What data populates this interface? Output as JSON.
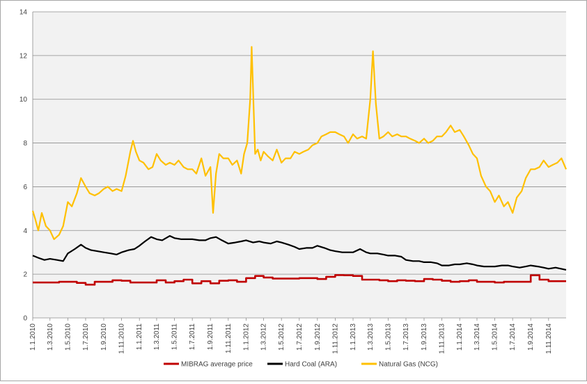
{
  "chart_data": {
    "type": "line",
    "title": "",
    "xlabel": "",
    "ylabel": "",
    "ylim": [
      0,
      14
    ],
    "yticks": [
      0,
      2,
      4,
      6,
      8,
      10,
      12,
      14
    ],
    "grid": "horizontal",
    "legend": "bottom",
    "x_tick_labels": [
      "1.1.2010",
      "1.3.2010",
      "1.5.2010",
      "1.7.2010",
      "1.9.2010",
      "1.11.2010",
      "1.1.2011",
      "1.3.2011",
      "1.5.2011",
      "1.7.2011",
      "1.9.2011",
      "1.11.2011",
      "1.1.2012",
      "1.3.2012",
      "1.5.2012",
      "1.7.2012",
      "1.9.2012",
      "1.11.2012",
      "1.1.2013",
      "1.3.2013",
      "1.5.2013",
      "1.7.2013",
      "1.9.2013",
      "1.11.2013",
      "1.1.2014",
      "1.3.2014",
      "1.5.2014",
      "1.7.2014",
      "1.9.2014",
      "1.11.2014"
    ],
    "series": [
      {
        "name": "MIBRAG average price",
        "color": "#c00000",
        "style": "step",
        "x": [
          "2010-01",
          "2010-02",
          "2010-03",
          "2010-04",
          "2010-05",
          "2010-06",
          "2010-07",
          "2010-08",
          "2010-09",
          "2010-10",
          "2010-11",
          "2010-12",
          "2011-01",
          "2011-02",
          "2011-03",
          "2011-04",
          "2011-05",
          "2011-06",
          "2011-07",
          "2011-08",
          "2011-09",
          "2011-10",
          "2011-11",
          "2011-12",
          "2012-01",
          "2012-02",
          "2012-03",
          "2012-04",
          "2012-05",
          "2012-06",
          "2012-07",
          "2012-08",
          "2012-09",
          "2012-10",
          "2012-11",
          "2012-12",
          "2013-01",
          "2013-02",
          "2013-03",
          "2013-04",
          "2013-05",
          "2013-06",
          "2013-07",
          "2013-08",
          "2013-09",
          "2013-10",
          "2013-11",
          "2013-12",
          "2014-01",
          "2014-02",
          "2014-03",
          "2014-04",
          "2014-05",
          "2014-06",
          "2014-07",
          "2014-08",
          "2014-09",
          "2014-10",
          "2014-11",
          "2014-12"
        ],
        "values": [
          1.62,
          1.62,
          1.62,
          1.65,
          1.65,
          1.6,
          1.52,
          1.65,
          1.65,
          1.72,
          1.7,
          1.62,
          1.62,
          1.62,
          1.72,
          1.62,
          1.68,
          1.75,
          1.58,
          1.68,
          1.58,
          1.7,
          1.72,
          1.65,
          1.82,
          1.92,
          1.85,
          1.8,
          1.8,
          1.8,
          1.82,
          1.82,
          1.78,
          1.88,
          1.96,
          1.95,
          1.92,
          1.75,
          1.75,
          1.72,
          1.68,
          1.72,
          1.7,
          1.68,
          1.78,
          1.75,
          1.7,
          1.65,
          1.68,
          1.72,
          1.65,
          1.65,
          1.62,
          1.65,
          1.65,
          1.65,
          1.95,
          1.75,
          1.68,
          1.68
        ]
      },
      {
        "name": "Hard Coal (ARA)",
        "color": "#000000",
        "style": "line",
        "x": [
          "2010-01-01",
          "2010-01-20",
          "2010-02-10",
          "2010-03-01",
          "2010-03-25",
          "2010-04-15",
          "2010-05-01",
          "2010-05-25",
          "2010-06-15",
          "2010-07-01",
          "2010-07-20",
          "2010-08-10",
          "2010-09-01",
          "2010-09-25",
          "2010-10-15",
          "2010-11-01",
          "2010-11-25",
          "2010-12-15",
          "2011-01-01",
          "2011-01-20",
          "2011-02-10",
          "2011-03-01",
          "2011-03-20",
          "2011-04-15",
          "2011-05-01",
          "2011-05-25",
          "2011-06-15",
          "2011-07-01",
          "2011-07-25",
          "2011-08-15",
          "2011-09-01",
          "2011-09-20",
          "2011-10-10",
          "2011-11-01",
          "2011-11-25",
          "2011-12-15",
          "2012-01-01",
          "2012-01-25",
          "2012-02-15",
          "2012-03-01",
          "2012-03-25",
          "2012-04-15",
          "2012-05-01",
          "2012-05-25",
          "2012-06-15",
          "2012-07-01",
          "2012-07-25",
          "2012-08-15",
          "2012-09-01",
          "2012-09-25",
          "2012-10-15",
          "2012-11-01",
          "2012-11-25",
          "2012-12-15",
          "2013-01-01",
          "2013-01-25",
          "2013-02-15",
          "2013-03-01",
          "2013-03-25",
          "2013-04-15",
          "2013-05-01",
          "2013-05-25",
          "2013-06-15",
          "2013-07-01",
          "2013-07-25",
          "2013-08-15",
          "2013-09-01",
          "2013-09-25",
          "2013-10-15",
          "2013-11-01",
          "2013-11-25",
          "2013-12-15",
          "2014-01-01",
          "2014-01-25",
          "2014-02-15",
          "2014-03-01",
          "2014-03-25",
          "2014-04-15",
          "2014-05-01",
          "2014-05-25",
          "2014-06-15",
          "2014-07-01",
          "2014-07-25",
          "2014-08-15",
          "2014-09-01",
          "2014-09-25",
          "2014-10-15",
          "2014-11-01",
          "2014-11-25",
          "2014-12-31"
        ],
        "values": [
          2.85,
          2.75,
          2.65,
          2.7,
          2.65,
          2.6,
          2.95,
          3.15,
          3.35,
          3.2,
          3.1,
          3.05,
          3.0,
          2.95,
          2.9,
          3.0,
          3.1,
          3.15,
          3.3,
          3.5,
          3.7,
          3.6,
          3.55,
          3.75,
          3.65,
          3.6,
          3.6,
          3.6,
          3.55,
          3.55,
          3.65,
          3.7,
          3.55,
          3.4,
          3.45,
          3.5,
          3.55,
          3.45,
          3.5,
          3.45,
          3.4,
          3.5,
          3.45,
          3.35,
          3.25,
          3.15,
          3.2,
          3.2,
          3.3,
          3.2,
          3.1,
          3.05,
          3.0,
          3.0,
          3.0,
          3.15,
          3.0,
          2.95,
          2.95,
          2.9,
          2.85,
          2.85,
          2.8,
          2.65,
          2.6,
          2.6,
          2.55,
          2.55,
          2.5,
          2.4,
          2.4,
          2.45,
          2.45,
          2.5,
          2.45,
          2.4,
          2.35,
          2.35,
          2.35,
          2.4,
          2.4,
          2.35,
          2.3,
          2.35,
          2.4,
          2.35,
          2.3,
          2.25,
          2.3,
          2.2
        ]
      },
      {
        "name": "Natural Gas (NCG)",
        "color": "#ffc000",
        "style": "line",
        "x": [
          "2010-01-01",
          "2010-01-10",
          "2010-01-20",
          "2010-02-01",
          "2010-02-15",
          "2010-03-01",
          "2010-03-15",
          "2010-04-01",
          "2010-04-15",
          "2010-05-01",
          "2010-05-15",
          "2010-06-01",
          "2010-06-15",
          "2010-07-01",
          "2010-07-15",
          "2010-08-01",
          "2010-08-15",
          "2010-09-01",
          "2010-09-15",
          "2010-10-01",
          "2010-10-15",
          "2010-11-01",
          "2010-11-15",
          "2010-12-01",
          "2010-12-10",
          "2010-12-20",
          "2011-01-01",
          "2011-01-15",
          "2011-02-01",
          "2011-02-15",
          "2011-03-01",
          "2011-03-15",
          "2011-04-01",
          "2011-04-15",
          "2011-05-01",
          "2011-05-15",
          "2011-06-01",
          "2011-06-15",
          "2011-07-01",
          "2011-07-15",
          "2011-08-01",
          "2011-08-15",
          "2011-09-01",
          "2011-09-10",
          "2011-09-20",
          "2011-10-01",
          "2011-10-15",
          "2011-11-01",
          "2011-11-15",
          "2011-12-01",
          "2011-12-15",
          "2011-12-25",
          "2012-01-05",
          "2012-01-15",
          "2012-01-20",
          "2012-02-01",
          "2012-02-10",
          "2012-02-20",
          "2012-03-01",
          "2012-03-15",
          "2012-04-01",
          "2012-04-15",
          "2012-05-01",
          "2012-05-15",
          "2012-06-01",
          "2012-06-15",
          "2012-07-01",
          "2012-07-15",
          "2012-08-01",
          "2012-08-15",
          "2012-09-01",
          "2012-09-15",
          "2012-10-01",
          "2012-10-15",
          "2012-11-01",
          "2012-11-15",
          "2012-12-01",
          "2012-12-15",
          "2013-01-01",
          "2013-01-15",
          "2013-02-01",
          "2013-02-15",
          "2013-03-01",
          "2013-03-10",
          "2013-03-20",
          "2013-04-01",
          "2013-04-15",
          "2013-05-01",
          "2013-05-15",
          "2013-06-01",
          "2013-06-15",
          "2013-07-01",
          "2013-07-15",
          "2013-08-01",
          "2013-08-15",
          "2013-09-01",
          "2013-09-15",
          "2013-10-01",
          "2013-10-15",
          "2013-11-01",
          "2013-11-15",
          "2013-12-01",
          "2013-12-15",
          "2014-01-01",
          "2014-01-15",
          "2014-02-01",
          "2014-02-15",
          "2014-03-01",
          "2014-03-15",
          "2014-04-01",
          "2014-04-15",
          "2014-05-01",
          "2014-05-15",
          "2014-06-01",
          "2014-06-15",
          "2014-07-01",
          "2014-07-15",
          "2014-08-01",
          "2014-08-15",
          "2014-09-01",
          "2014-09-15",
          "2014-10-01",
          "2014-10-15",
          "2014-11-01",
          "2014-11-15",
          "2014-12-01",
          "2014-12-15",
          "2014-12-31"
        ],
        "values": [
          4.9,
          4.5,
          4.0,
          4.8,
          4.2,
          4.0,
          3.6,
          3.8,
          4.2,
          5.3,
          5.1,
          5.7,
          6.4,
          6.0,
          5.7,
          5.6,
          5.7,
          5.9,
          6.0,
          5.8,
          5.9,
          5.8,
          6.5,
          7.6,
          8.1,
          7.6,
          7.2,
          7.1,
          6.8,
          6.9,
          7.5,
          7.2,
          7.0,
          7.1,
          7.0,
          7.2,
          6.9,
          6.8,
          6.8,
          6.6,
          7.3,
          6.5,
          6.9,
          4.8,
          6.6,
          7.5,
          7.3,
          7.3,
          7.0,
          7.2,
          6.6,
          7.5,
          8.0,
          10.0,
          12.4,
          7.5,
          7.7,
          7.2,
          7.6,
          7.4,
          7.2,
          7.7,
          7.1,
          7.3,
          7.3,
          7.6,
          7.5,
          7.6,
          7.7,
          7.9,
          8.0,
          8.3,
          8.4,
          8.5,
          8.5,
          8.4,
          8.3,
          8.0,
          8.4,
          8.2,
          8.3,
          8.2,
          10.0,
          12.2,
          9.8,
          8.2,
          8.3,
          8.5,
          8.3,
          8.4,
          8.3,
          8.3,
          8.2,
          8.1,
          8.0,
          8.2,
          8.0,
          8.1,
          8.3,
          8.3,
          8.5,
          8.8,
          8.5,
          8.6,
          8.3,
          7.9,
          7.5,
          7.3,
          6.5,
          6.0,
          5.8,
          5.3,
          5.6,
          5.1,
          5.3,
          4.8,
          5.5,
          5.8,
          6.4,
          6.8,
          6.8,
          6.9,
          7.2,
          6.9,
          7.0,
          7.1,
          7.3,
          6.8
        ]
      }
    ]
  }
}
